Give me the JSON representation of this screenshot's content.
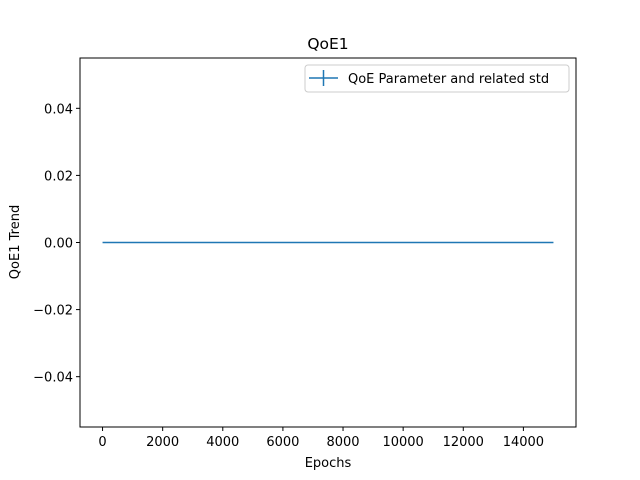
{
  "chart_data": {
    "type": "line",
    "title": "QoE1",
    "xlabel": "Epochs",
    "ylabel": "QoE1 Trend",
    "xlim": [
      -750,
      15750
    ],
    "ylim": [
      -0.055,
      0.055
    ],
    "x_ticks": [
      0,
      2000,
      4000,
      6000,
      8000,
      10000,
      12000,
      14000
    ],
    "x_tick_labels": [
      "0",
      "2000",
      "4000",
      "6000",
      "8000",
      "10000",
      "12000",
      "14000"
    ],
    "y_ticks": [
      -0.04,
      -0.02,
      0.0,
      0.02,
      0.04
    ],
    "y_tick_labels": [
      "−0.04",
      "−0.02",
      "0.00",
      "0.02",
      "0.04"
    ],
    "grid": false,
    "legend_position": "top-right",
    "series": [
      {
        "name": "QoE Parameter and related std",
        "color": "#1f77b4",
        "x": [
          0,
          15000
        ],
        "y": [
          0.0,
          0.0
        ],
        "std": [
          0.0,
          0.0
        ]
      }
    ]
  }
}
